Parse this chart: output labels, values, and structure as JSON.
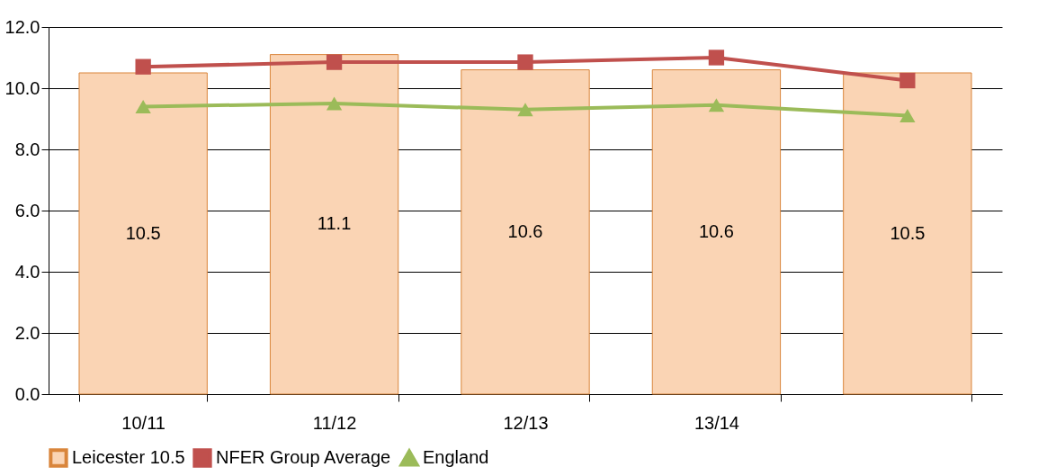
{
  "chart_data": {
    "type": "bar",
    "categories": [
      "10/11",
      "11/12",
      "12/13",
      "13/14",
      null
    ],
    "series": [
      {
        "name": "Leicester 10.5",
        "color": "#fad4b4",
        "values": [
          10.5,
          11.1,
          10.6,
          10.6,
          10.5
        ],
        "value_labels": [
          "10.5",
          "11.1",
          "10.6",
          "10.6",
          "10.5"
        ]
      },
      {
        "name": "NFER Group Average",
        "type": "line",
        "color": "#c0504d",
        "marker": "square",
        "values": [
          10.7,
          10.85,
          10.85,
          11.0,
          10.25
        ]
      },
      {
        "name": "England",
        "type": "line",
        "color": "#9bbb59",
        "marker": "triangle",
        "values": [
          9.4,
          9.5,
          9.3,
          9.45,
          9.1
        ]
      }
    ],
    "ylim": [
      0,
      12
    ],
    "yticks": [
      {
        "value": 0,
        "label": "0.0"
      },
      {
        "value": 2,
        "label": "2.0"
      },
      {
        "value": 4,
        "label": "4.0"
      },
      {
        "value": 6,
        "label": "6.0"
      },
      {
        "value": 8,
        "label": "8.0"
      },
      {
        "value": 10,
        "label": "10.0"
      },
      {
        "value": 12,
        "label": "12.0"
      }
    ],
    "grid": "y",
    "legend": "bottom"
  }
}
